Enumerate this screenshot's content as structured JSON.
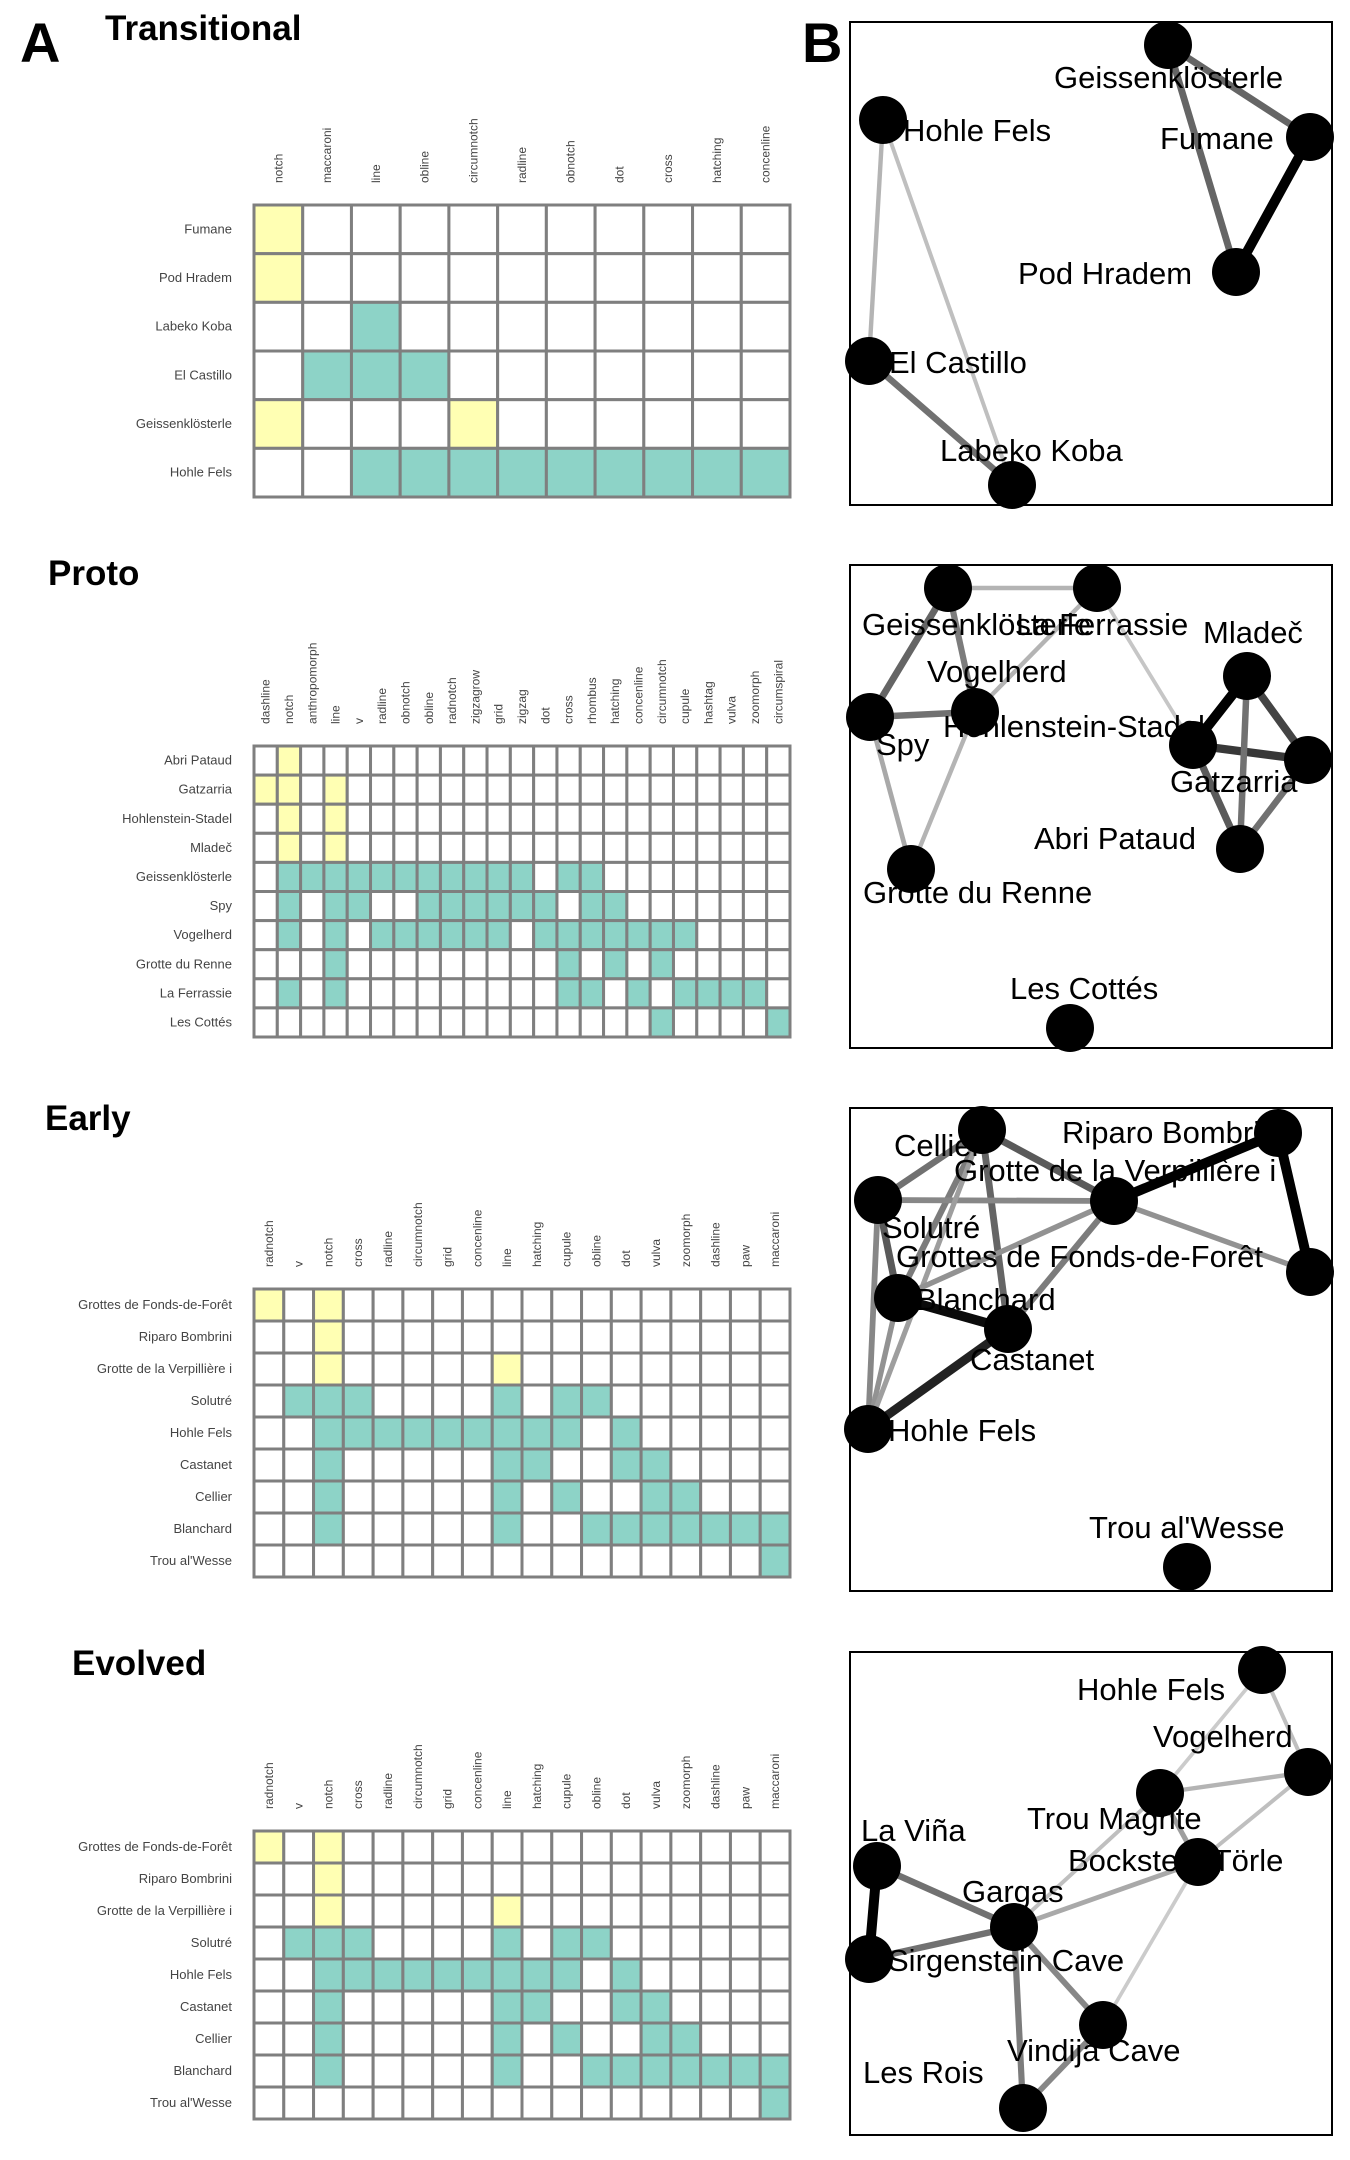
{
  "panel_labels": {
    "a": "A",
    "b": "B"
  },
  "colors": {
    "empty": "#ffffff",
    "yellow": "#ffffb3",
    "teal": "#8dd3c7",
    "grid": "#7f7f7f",
    "node": "#000000"
  },
  "chart_data": [
    {
      "type": "heatmap",
      "title": "Transitional",
      "columns": [
        "notch",
        "maccaroni",
        "line",
        "obline",
        "circumnotch",
        "radline",
        "obnotch",
        "dot",
        "cross",
        "hatching",
        "concenline"
      ],
      "rows": [
        {
          "label": "Fumane",
          "cells": "Y.........."
        },
        {
          "label": "Pod Hradem",
          "cells": "Y.........."
        },
        {
          "label": "Labeko Koba",
          "cells": "..T........"
        },
        {
          "label": "El Castillo",
          "cells": ".TTT......."
        },
        {
          "label": "Geissenklösterle",
          "cells": "Y...Y......"
        },
        {
          "label": "Hohle Fels",
          "cells": "..TTTTTTTTT"
        }
      ],
      "legend": {
        "Y": "yellow",
        "T": "teal"
      }
    },
    {
      "type": "heatmap",
      "title": "Proto",
      "columns": [
        "dashline",
        "notch",
        "anthropomorph",
        "line",
        "v",
        "radline",
        "obnotch",
        "obline",
        "radnotch",
        "zigzagrow",
        "grid",
        "zigzag",
        "dot",
        "cross",
        "rhombus",
        "hatching",
        "concenline",
        "circumnotch",
        "cupule",
        "hashtag",
        "vulva",
        "zoomorph",
        "circumspiral"
      ],
      "rows": [
        {
          "label": "Abri Pataud",
          "cells": ".Y....................."
        },
        {
          "label": "Gatzarria",
          "cells": "YY.Y..................."
        },
        {
          "label": "Hohlenstein-Stadel",
          "cells": ".Y.Y..................."
        },
        {
          "label": "Mladeč",
          "cells": ".Y.Y..................."
        },
        {
          "label": "Geissenklösterle",
          "cells": ".TTTTTTTTTTT.TT........"
        },
        {
          "label": "Spy",
          "cells": ".T.TT..TTTTTT.TT......."
        },
        {
          "label": "Vogelherd",
          "cells": ".T.T.TTTTTT.TTTTTTT...."
        },
        {
          "label": "Grotte du Renne",
          "cells": "...T.........T.T.T....."
        },
        {
          "label": "La Ferrassie",
          "cells": ".T.T.........TT.T.TTTT."
        },
        {
          "label": "Les Cottés",
          "cells": ".................T....T"
        }
      ],
      "legend": {
        "Y": "yellow",
        "T": "teal"
      }
    },
    {
      "type": "heatmap",
      "title": "Early",
      "columns": [
        "radnotch",
        "v",
        "notch",
        "cross",
        "radline",
        "circumnotch",
        "grid",
        "concenline",
        "line",
        "hatching",
        "cupule",
        "obline",
        "dot",
        "vulva",
        "zoomorph",
        "dashline",
        "paw",
        "maccaroni"
      ],
      "rows": [
        {
          "label": "Grottes de Fonds-de-Forêt",
          "cells": "Y.Y..............."
        },
        {
          "label": "Riparo Bombrini",
          "cells": "..Y..............."
        },
        {
          "label": "Grotte de la Verpillière i",
          "cells": "..Y.....Y........."
        },
        {
          "label": "Solutré",
          "cells": ".TTT....T.TT......"
        },
        {
          "label": "Hohle Fels",
          "cells": "..TTTTTTTTT.T....."
        },
        {
          "label": "Castanet",
          "cells": "..T.....TT..TT...."
        },
        {
          "label": "Cellier",
          "cells": "..T.....T.T..TT..."
        },
        {
          "label": "Blanchard",
          "cells": "..T.....T..TTTTTTT"
        },
        {
          "label": "Trou al'Wesse",
          "cells": ".................T"
        }
      ],
      "legend": {
        "Y": "yellow",
        "T": "teal"
      }
    },
    {
      "type": "heatmap",
      "title": "Evolved",
      "columns": [
        "radnotch",
        "v",
        "notch",
        "cross",
        "radline",
        "circumnotch",
        "grid",
        "concenline",
        "line",
        "hatching",
        "cupule",
        "obline",
        "dot",
        "vulva",
        "zoomorph",
        "dashline",
        "paw",
        "maccaroni"
      ],
      "rows": [
        {
          "label": "Grottes de Fonds-de-Forêt",
          "cells": "Y.Y..............."
        },
        {
          "label": "Riparo Bombrini",
          "cells": "..Y..............."
        },
        {
          "label": "Grotte de la Verpillière i",
          "cells": "..Y.....Y........."
        },
        {
          "label": "Solutré",
          "cells": ".TTT....T.TT......"
        },
        {
          "label": "Hohle Fels",
          "cells": "..TTTTTTTTT.T....."
        },
        {
          "label": "Castanet",
          "cells": "..T.....TT..TT...."
        },
        {
          "label": "Cellier",
          "cells": "..T.....T.T..TT..."
        },
        {
          "label": "Blanchard",
          "cells": "..T.....T..TTTTTTT"
        },
        {
          "label": "Trou al'Wesse",
          "cells": ".................T"
        }
      ],
      "legend": {
        "Y": "yellow",
        "T": "teal"
      }
    }
  ],
  "networks": [
    {
      "title": "Transitional",
      "nodes": [
        {
          "label": "Geissenklösterle"
        },
        {
          "label": "Fumane"
        },
        {
          "label": "Hohle Fels"
        },
        {
          "label": "Pod Hradem"
        },
        {
          "label": "El Castillo"
        },
        {
          "label": "Labeko Koba"
        }
      ],
      "edges": [
        {
          "source": "Fumane",
          "target": "Pod Hradem",
          "weight": 1.0
        },
        {
          "source": "Geissenklösterle",
          "target": "Fumane",
          "weight": 0.55
        },
        {
          "source": "Geissenklösterle",
          "target": "Pod Hradem",
          "weight": 0.55
        },
        {
          "source": "El Castillo",
          "target": "Labeko Koba",
          "weight": 0.5
        },
        {
          "source": "Hohle Fels",
          "target": "El Castillo",
          "weight": 0.2
        },
        {
          "source": "Hohle Fels",
          "target": "Labeko Koba",
          "weight": 0.15
        }
      ]
    },
    {
      "title": "Proto",
      "nodes": [
        {
          "label": "Geissenklösterle"
        },
        {
          "label": "La Ferrassie"
        },
        {
          "label": "Mladeč"
        },
        {
          "label": "Vogelherd"
        },
        {
          "label": "Spy"
        },
        {
          "label": "Hohlenstein-Stadel"
        },
        {
          "label": "Gatzarria"
        },
        {
          "label": "Abri Pataud"
        },
        {
          "label": "Grotte du Renne"
        },
        {
          "label": "Les Cottés"
        }
      ],
      "edges": [
        {
          "source": "Mladeč",
          "target": "Hohlenstein-Stadel",
          "weight": 1.0
        },
        {
          "source": "Hohlenstein-Stadel",
          "target": "Gatzarria",
          "weight": 0.75
        },
        {
          "source": "Mladeč",
          "target": "Gatzarria",
          "weight": 0.7
        },
        {
          "source": "Hohlenstein-Stadel",
          "target": "Abri Pataud",
          "weight": 0.6
        },
        {
          "source": "Gatzarria",
          "target": "Abri Pataud",
          "weight": 0.5
        },
        {
          "source": "Mladeč",
          "target": "Abri Pataud",
          "weight": 0.5
        },
        {
          "source": "Geissenklösterle",
          "target": "Spy",
          "weight": 0.55
        },
        {
          "source": "Geissenklösterle",
          "target": "Vogelherd",
          "weight": 0.45
        },
        {
          "source": "Spy",
          "target": "Vogelherd",
          "weight": 0.5
        },
        {
          "source": "Geissenklösterle",
          "target": "La Ferrassie",
          "weight": 0.2
        },
        {
          "source": "Vogelherd",
          "target": "La Ferrassie",
          "weight": 0.2
        },
        {
          "source": "La Ferrassie",
          "target": "Hohlenstein-Stadel",
          "weight": 0.12
        },
        {
          "source": "Vogelherd",
          "target": "Grotte du Renne",
          "weight": 0.2
        },
        {
          "source": "Spy",
          "target": "Grotte du Renne",
          "weight": 0.25
        }
      ]
    },
    {
      "title": "Early",
      "nodes": [
        {
          "label": "Riparo Bombrini"
        },
        {
          "label": "Cellier"
        },
        {
          "label": "Grotte de la Verpillière i"
        },
        {
          "label": "Solutré"
        },
        {
          "label": "Grottes de Fonds-de-Forêt"
        },
        {
          "label": "Blanchard"
        },
        {
          "label": "Castanet"
        },
        {
          "label": "Hohle Fels"
        },
        {
          "label": "Trou al'Wesse"
        }
      ],
      "edges": [
        {
          "source": "Riparo Bombrini",
          "target": "Grotte de la Verpillière i",
          "weight": 1.0
        },
        {
          "source": "Riparo Bombrini",
          "target": "Grottes de Fonds-de-Forêt",
          "weight": 1.0
        },
        {
          "source": "Blanchard",
          "target": "Castanet",
          "weight": 0.95
        },
        {
          "source": "Castanet",
          "target": "Hohle Fels",
          "weight": 0.85
        },
        {
          "source": "Solutré",
          "target": "Blanchard",
          "weight": 0.6
        },
        {
          "source": "Solutré",
          "target": "Cellier",
          "weight": 0.5
        },
        {
          "source": "Cellier",
          "target": "Castanet",
          "weight": 0.55
        },
        {
          "source": "Cellier",
          "target": "Grotte de la Verpillière i",
          "weight": 0.6
        },
        {
          "source": "Cellier",
          "target": "Blanchard",
          "weight": 0.45
        },
        {
          "source": "Solutré",
          "target": "Grotte de la Verpillière i",
          "weight": 0.4
        },
        {
          "source": "Grotte de la Verpillière i",
          "target": "Castanet",
          "weight": 0.45
        },
        {
          "source": "Grotte de la Verpillière i",
          "target": "Grottes de Fonds-de-Forêt",
          "weight": 0.35
        },
        {
          "source": "Solutré",
          "target": "Hohle Fels",
          "weight": 0.4
        },
        {
          "source": "Blanchard",
          "target": "Hohle Fels",
          "weight": 0.35
        },
        {
          "source": "Cellier",
          "target": "Hohle Fels",
          "weight": 0.3
        },
        {
          "source": "Grotte de la Verpillière i",
          "target": "Blanchard",
          "weight": 0.35
        }
      ]
    },
    {
      "title": "Evolved",
      "nodes": [
        {
          "label": "Hohle Fels"
        },
        {
          "label": "Vogelherd"
        },
        {
          "label": "Trou Magrite"
        },
        {
          "label": "Bockstein-Törle"
        },
        {
          "label": "La Viña"
        },
        {
          "label": "Gargas"
        },
        {
          "label": "Sirgenstein Cave"
        },
        {
          "label": "Vindija Cave"
        },
        {
          "label": "Les Rois"
        }
      ],
      "edges": [
        {
          "source": "La Viña",
          "target": "Sirgenstein Cave",
          "weight": 1.0
        },
        {
          "source": "La Viña",
          "target": "Gargas",
          "weight": 0.5
        },
        {
          "source": "Sirgenstein Cave",
          "target": "Gargas",
          "weight": 0.5
        },
        {
          "source": "Gargas",
          "target": "Vindija Cave",
          "weight": 0.4
        },
        {
          "source": "Gargas",
          "target": "Les Rois",
          "weight": 0.45
        },
        {
          "source": "Vindija Cave",
          "target": "Les Rois",
          "weight": 0.4
        },
        {
          "source": "Gargas",
          "target": "Bockstein-Törle",
          "weight": 0.25
        },
        {
          "source": "Gargas",
          "target": "Trou Magrite",
          "weight": 0.15
        },
        {
          "source": "Trou Magrite",
          "target": "Bockstein-Törle",
          "weight": 0.3
        },
        {
          "source": "Trou Magrite",
          "target": "Vogelherd",
          "weight": 0.2
        },
        {
          "source": "Vogelherd",
          "target": "Bockstein-Törle",
          "weight": 0.15
        },
        {
          "source": "Hohle Fels",
          "target": "Vogelherd",
          "weight": 0.15
        },
        {
          "source": "Hohle Fels",
          "target": "Trou Magrite",
          "weight": 0.1
        },
        {
          "source": "Bockstein-Törle",
          "target": "Vindija Cave",
          "weight": 0.1
        }
      ]
    }
  ]
}
